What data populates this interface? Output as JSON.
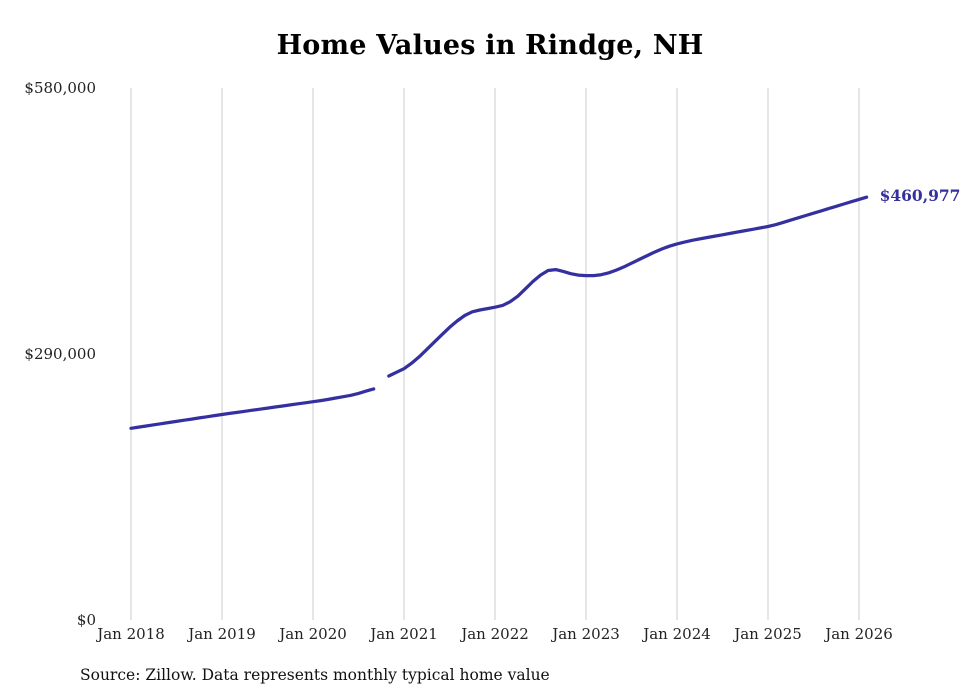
{
  "chart_data": {
    "type": "line",
    "title": "Home Values in Rindge, NH",
    "xlabel": "",
    "ylabel": "",
    "ylim": [
      0,
      580000
    ],
    "grid": "vertical-only",
    "legend": "none",
    "line_color": "#34309f",
    "gridline_color": "#cccccc",
    "end_label": "$460,977",
    "end_value": 460977,
    "source": "Source: Zillow. Data represents monthly typical home value",
    "x_tick_labels": [
      "Jan 2018",
      "Jan 2019",
      "Jan 2020",
      "Jan 2021",
      "Jan 2022",
      "Jan 2023",
      "Jan 2024",
      "Jan 2025",
      "Jan 2026"
    ],
    "y_ticks": [
      {
        "label": "$0",
        "value": 0
      },
      {
        "label": "$290,000",
        "value": 290000
      },
      {
        "label": "$580,000",
        "value": 580000
      }
    ],
    "months": [
      "2018-01",
      "2018-02",
      "2018-03",
      "2018-04",
      "2018-05",
      "2018-06",
      "2018-07",
      "2018-08",
      "2018-09",
      "2018-10",
      "2018-11",
      "2018-12",
      "2019-01",
      "2019-02",
      "2019-03",
      "2019-04",
      "2019-05",
      "2019-06",
      "2019-07",
      "2019-08",
      "2019-09",
      "2019-10",
      "2019-11",
      "2019-12",
      "2020-01",
      "2020-02",
      "2020-03",
      "2020-04",
      "2020-05",
      "2020-06",
      "2020-07",
      "2020-08",
      "2020-09",
      "2020-10",
      "2020-11",
      "2020-12",
      "2021-01",
      "2021-02",
      "2021-03",
      "2021-04",
      "2021-05",
      "2021-06",
      "2021-07",
      "2021-08",
      "2021-09",
      "2021-10",
      "2021-11",
      "2021-12",
      "2022-01",
      "2022-02",
      "2022-03",
      "2022-04",
      "2022-05",
      "2022-06",
      "2022-07",
      "2022-08",
      "2022-09",
      "2022-10",
      "2022-11",
      "2022-12",
      "2023-01",
      "2023-02",
      "2023-03",
      "2023-04",
      "2023-05",
      "2023-06",
      "2023-07",
      "2023-08",
      "2023-09",
      "2023-10",
      "2023-11",
      "2023-12",
      "2024-01",
      "2024-02",
      "2024-03",
      "2024-04",
      "2024-05",
      "2024-06",
      "2024-07",
      "2024-08",
      "2024-09",
      "2024-10",
      "2024-11",
      "2024-12",
      "2025-01",
      "2025-02",
      "2025-03",
      "2025-04",
      "2025-05",
      "2025-06",
      "2025-07",
      "2025-08",
      "2025-09",
      "2025-10",
      "2025-11",
      "2025-12",
      "2026-01",
      "2026-02"
    ],
    "values": [
      209000,
      210300,
      211500,
      212800,
      214000,
      215300,
      216500,
      217800,
      219000,
      220300,
      221500,
      222800,
      224000,
      225200,
      226300,
      227500,
      228700,
      229800,
      231000,
      232200,
      233300,
      234500,
      235700,
      236800,
      238000,
      239200,
      240500,
      242000,
      243500,
      245000,
      247000,
      249500,
      252000,
      null,
      266000,
      270000,
      274000,
      280000,
      287000,
      295000,
      303000,
      311000,
      319000,
      326000,
      332000,
      336000,
      338000,
      339500,
      341000,
      343000,
      347000,
      353000,
      361000,
      369000,
      376000,
      381000,
      382000,
      380000,
      377500,
      376000,
      375500,
      375500,
      376500,
      378500,
      381500,
      385000,
      389000,
      393000,
      397000,
      401000,
      404500,
      407500,
      410000,
      412000,
      414000,
      415500,
      417000,
      418500,
      420000,
      421500,
      423000,
      424500,
      426000,
      427500,
      429000,
      431000,
      433500,
      436000,
      438500,
      441000,
      443500,
      446000,
      448500,
      451000,
      453500,
      456000,
      458500,
      460977
    ]
  }
}
